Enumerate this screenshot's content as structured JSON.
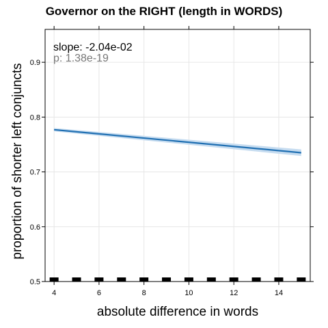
{
  "chart_data": {
    "type": "line",
    "title": "Governor on the RIGHT (length in WORDS)",
    "xlabel": "absolute difference in words",
    "ylabel": "proportion of shorter left conjuncts",
    "xlim": [
      3.6,
      15.4
    ],
    "ylim": [
      0.5,
      0.96
    ],
    "x_ticks": [
      4,
      6,
      8,
      10,
      12,
      14
    ],
    "y_ticks": [
      0.5,
      0.6,
      0.7,
      0.8,
      0.9
    ],
    "grid": true,
    "series": [
      {
        "x": [
          4,
          15
        ],
        "y": [
          0.777,
          0.735
        ],
        "ci_lower": [
          0.774,
          0.729
        ],
        "ci_upper": [
          0.78,
          0.741
        ],
        "color": "#1f6fb2",
        "band_color": "#c6dcf0"
      }
    ],
    "rug_x": [
      4,
      5,
      6,
      7,
      8,
      9,
      10,
      11,
      12,
      13,
      14,
      15
    ],
    "annotations": {
      "slope": "slope: -2.04e-02",
      "p": "p: 1.38e-19"
    }
  }
}
